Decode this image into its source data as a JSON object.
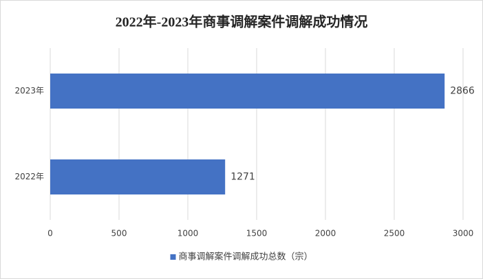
{
  "chart_data": {
    "type": "hbar",
    "title": "2022年-2023年商事调解案件调解成功情况",
    "categories": [
      "2023年",
      "2022年"
    ],
    "series": [
      {
        "name": "商事调解案件调解成功总数（宗）",
        "color": "#4472c4",
        "values": [
          2866,
          1271
        ]
      }
    ],
    "xlim": [
      0,
      3000
    ],
    "xticks": [
      0,
      500,
      1000,
      1500,
      2000,
      2500,
      3000
    ],
    "grid": true,
    "legend": "bottom"
  }
}
